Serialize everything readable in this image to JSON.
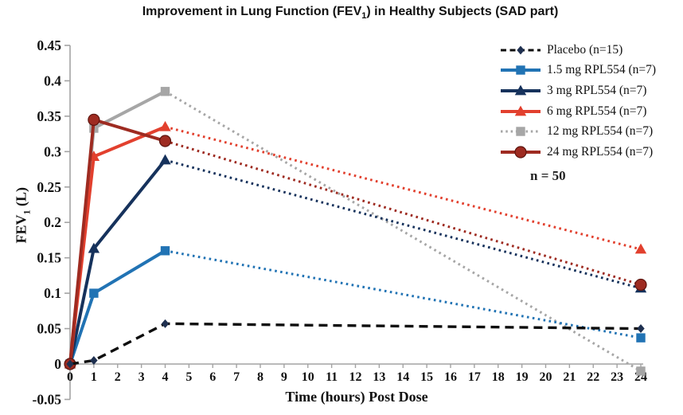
{
  "title": {
    "pre": "Improvement in Lung Function (FEV",
    "sub": "1",
    "post": ") in Healthy Subjects (SAD part)"
  },
  "chart_data": {
    "type": "line",
    "x_label": "Time (hours) Post Dose",
    "y_label": {
      "pre": "FEV",
      "sub": "1",
      "post": " (L)"
    },
    "x": [
      0,
      1,
      4,
      24
    ],
    "xlim": [
      0,
      24
    ],
    "x_tick_step": 1,
    "ylim": [
      -0.05,
      0.45
    ],
    "y_tick_step": 0.05,
    "grid": false,
    "legend_position": "top-right",
    "annotation": "n = 50",
    "axis_color": "#a3a3a3",
    "text_color": "#111111",
    "solid_until_x": 4,
    "series": [
      {
        "name": "Placebo (n=15)",
        "line_color": "#0d0d0d",
        "marker": "diamond",
        "marker_color": "#1f3050",
        "style": "dashed",
        "values": [
          0,
          0.005,
          0.057,
          0.05
        ]
      },
      {
        "name": "1.5 mg RPL554 (n=7)",
        "line_color": "#2173b4",
        "marker": "square",
        "marker_color": "#2173b4",
        "style": "solid_then_dotted",
        "values": [
          0,
          0.1,
          0.16,
          0.037
        ]
      },
      {
        "name": "3 mg RPL554 (n=7)",
        "line_color": "#16325c",
        "marker": "triangle",
        "marker_color": "#16325c",
        "style": "solid_then_dotted",
        "values": [
          0,
          0.163,
          0.288,
          0.107
        ]
      },
      {
        "name": "6 mg RPL554 (n=7)",
        "line_color": "#e2402e",
        "marker": "triangle",
        "marker_color": "#e2402e",
        "style": "solid_then_dotted",
        "values": [
          0,
          0.293,
          0.335,
          0.162
        ]
      },
      {
        "name": "12 mg RPL554 (n=7)",
        "line_color": "#a6a6a6",
        "marker": "square",
        "marker_color": "#a6a6a6",
        "style": "solid_then_dotted",
        "legend_style": "dotted",
        "values": [
          0,
          0.333,
          0.385,
          -0.01
        ]
      },
      {
        "name": "24 mg RPL554 (n=7)",
        "line_color": "#9e2b21",
        "marker": "circle",
        "marker_color": "#9e2b21",
        "style": "solid_then_dotted",
        "values": [
          0,
          0.345,
          0.315,
          0.112
        ]
      }
    ]
  }
}
